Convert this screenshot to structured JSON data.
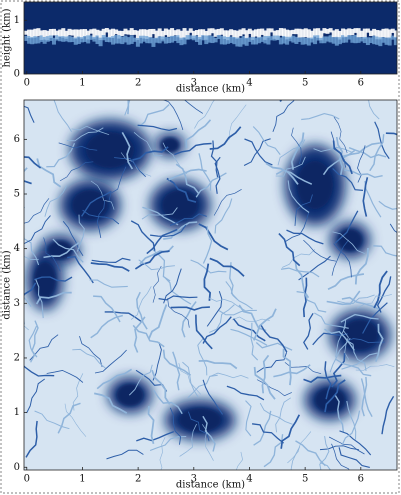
{
  "chart_data": [
    {
      "type": "heatmap",
      "xlabel": "distance (km)",
      "ylabel": "height (km)",
      "xlim": [
        -0.05,
        6.65
      ],
      "ylim": [
        0,
        1.34
      ],
      "xticks": [
        0,
        1,
        2,
        3,
        4,
        5,
        6
      ],
      "yticks": [
        0,
        1
      ]
    },
    {
      "type": "heatmap",
      "xlabel": "distance (km)",
      "ylabel": "distance (km)",
      "xlim": [
        -0.05,
        6.65
      ],
      "ylim": [
        -0.05,
        6.72
      ],
      "xticks": [
        0,
        1,
        2,
        3,
        4,
        5,
        6
      ],
      "yticks": [
        0,
        1,
        2,
        3,
        4,
        5,
        6
      ]
    }
  ]
}
